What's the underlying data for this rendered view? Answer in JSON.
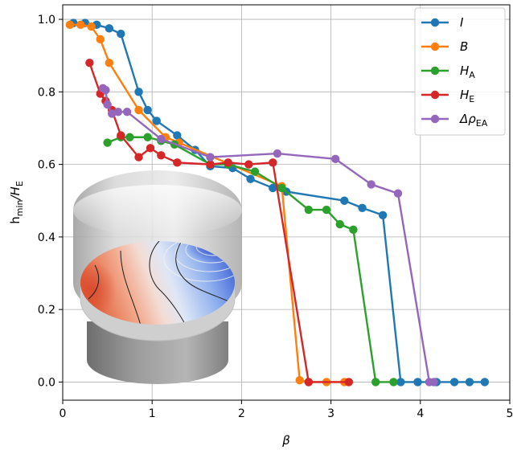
{
  "chart_data": {
    "type": "line",
    "xlabel": "β",
    "ylabel_main": "h",
    "ylabel_sub": "min",
    "ylabel_rest": "/H",
    "ylabel_sub2": "E",
    "xlim": [
      0,
      5
    ],
    "ylim": [
      -0.05,
      1.04
    ],
    "xticks": [
      0,
      1,
      2,
      3,
      4,
      5
    ],
    "yticks": [
      0.0,
      0.2,
      0.4,
      0.6,
      0.8,
      1.0
    ],
    "xtick_labels": [
      "0",
      "1",
      "2",
      "3",
      "4",
      "5"
    ],
    "ytick_labels": [
      "0.0",
      "0.2",
      "0.4",
      "0.6",
      "0.8",
      "1.0"
    ],
    "grid": true,
    "legend_position": "top-right",
    "series": [
      {
        "name": "I",
        "name_sub": "",
        "color": "#1f77b4",
        "x": [
          0.12,
          0.25,
          0.38,
          0.52,
          0.65,
          0.85,
          0.95,
          1.05,
          1.28,
          1.48,
          1.65,
          1.9,
          2.1,
          2.35,
          2.5,
          3.15,
          3.35,
          3.58,
          3.78,
          3.97,
          4.18,
          4.38,
          4.55,
          4.72
        ],
        "y": [
          0.99,
          0.99,
          0.985,
          0.975,
          0.96,
          0.8,
          0.75,
          0.72,
          0.68,
          0.64,
          0.595,
          0.59,
          0.56,
          0.535,
          0.525,
          0.5,
          0.48,
          0.46,
          0.0,
          0.0,
          0.0,
          0.0,
          0.0,
          0.0
        ]
      },
      {
        "name": "B",
        "name_sub": "",
        "color": "#ff7f0e",
        "x": [
          0.08,
          0.2,
          0.32,
          0.42,
          0.52,
          0.85,
          1.15,
          1.3,
          2.45,
          2.65,
          2.75,
          2.95,
          3.15
        ],
        "y": [
          0.985,
          0.985,
          0.98,
          0.945,
          0.88,
          0.75,
          0.675,
          0.66,
          0.54,
          0.005,
          0.0,
          0.0,
          0.0
        ]
      },
      {
        "name": "H",
        "name_sub": "A",
        "color": "#2ca02c",
        "x": [
          0.5,
          0.65,
          0.75,
          0.95,
          1.1,
          1.25,
          1.65,
          1.85,
          2.15,
          2.45,
          2.75,
          2.95,
          3.1,
          3.25,
          3.5,
          3.7
        ],
        "y": [
          0.66,
          0.675,
          0.675,
          0.675,
          0.665,
          0.655,
          0.6,
          0.6,
          0.58,
          0.535,
          0.475,
          0.475,
          0.435,
          0.42,
          0.0,
          0.0
        ]
      },
      {
        "name": "H",
        "name_sub": "E",
        "color": "#d62728",
        "x": [
          0.3,
          0.42,
          0.48,
          0.55,
          0.65,
          0.85,
          0.98,
          1.1,
          1.28,
          1.65,
          1.85,
          2.08,
          2.35,
          2.75,
          3.2
        ],
        "y": [
          0.88,
          0.795,
          0.775,
          0.75,
          0.68,
          0.62,
          0.645,
          0.625,
          0.605,
          0.6,
          0.605,
          0.6,
          0.605,
          0.0,
          0.0
        ]
      },
      {
        "name": "Δρ",
        "name_sub": "EA",
        "color": "#9467bd",
        "x": [
          0.45,
          0.48,
          0.5,
          0.55,
          0.62,
          0.72,
          1.1,
          1.65,
          2.4,
          3.05,
          3.45,
          3.75,
          4.1,
          4.15
        ],
        "y": [
          0.81,
          0.805,
          0.765,
          0.74,
          0.745,
          0.745,
          0.67,
          0.62,
          0.63,
          0.615,
          0.545,
          0.52,
          0.0,
          0.0
        ]
      }
    ]
  }
}
